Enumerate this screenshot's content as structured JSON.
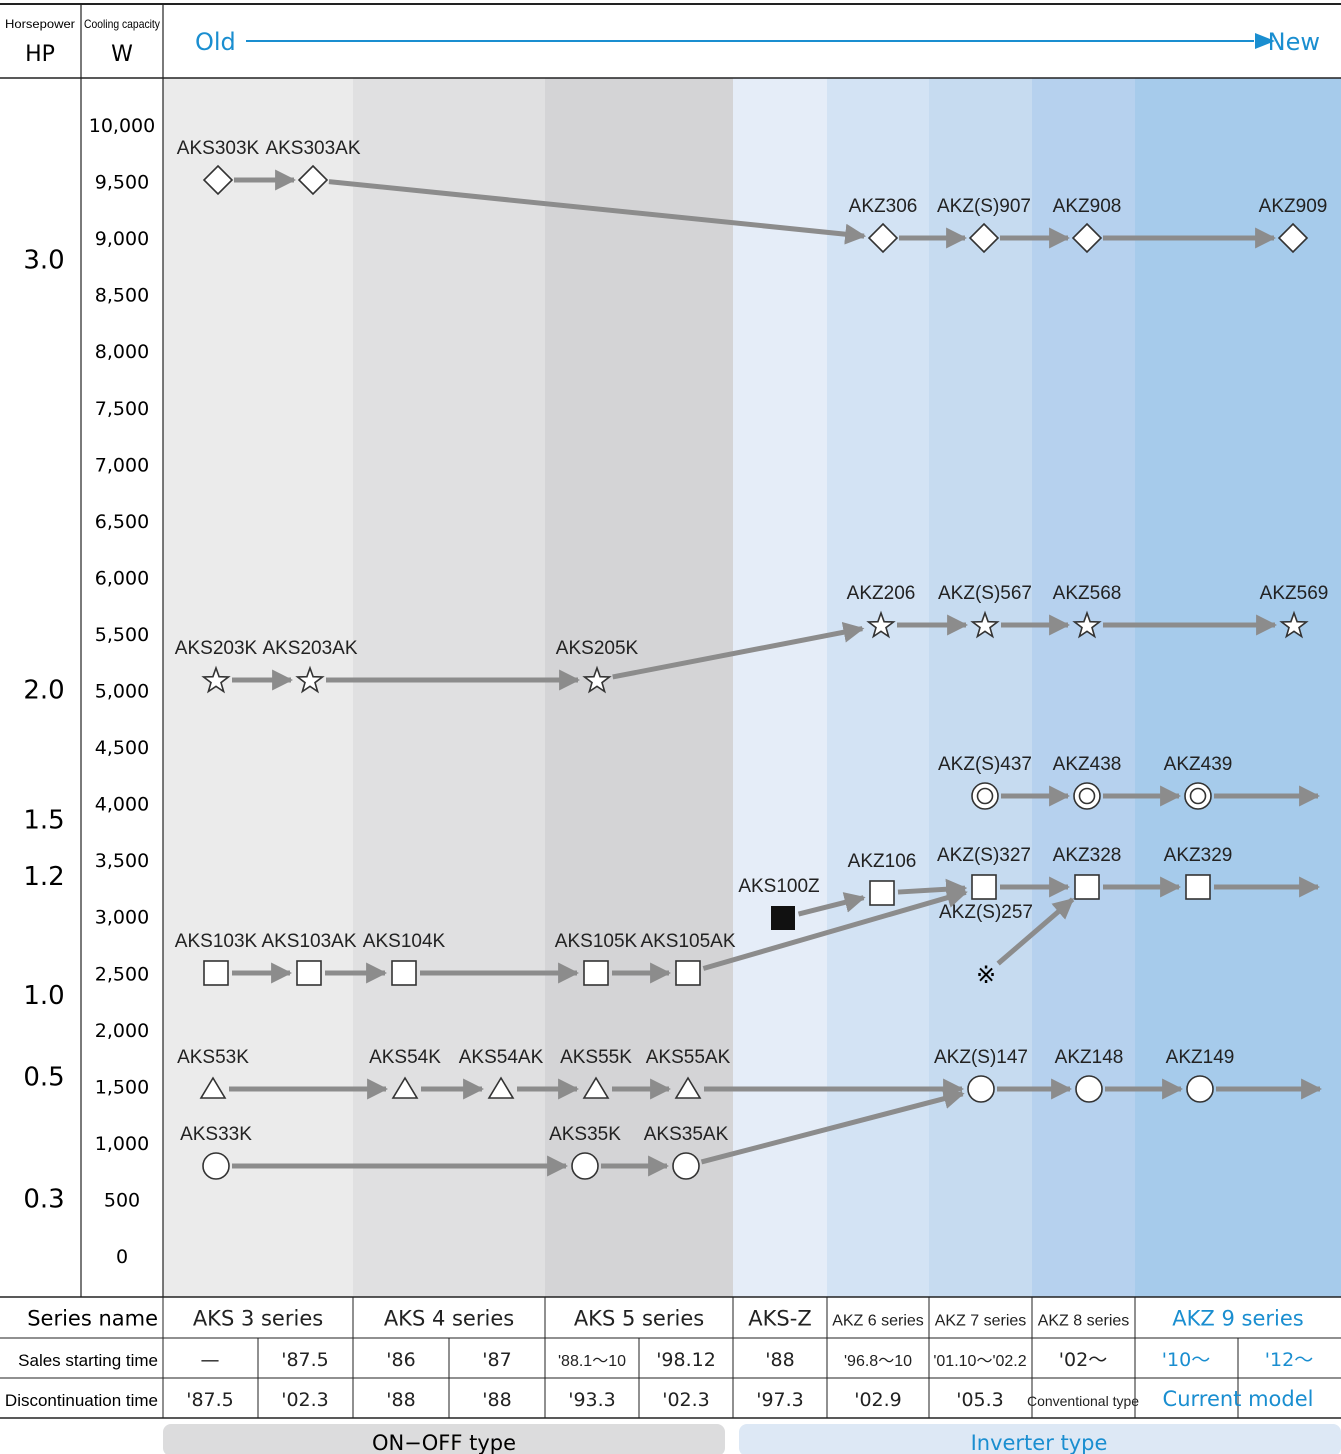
{
  "header": {
    "horsepower_label": "Horsepower",
    "horsepower_unit": "HP",
    "cooling_label": "Cooling capacity",
    "cooling_unit": "W",
    "old_label": "Old",
    "new_label": "New"
  },
  "capacity_ticks": [
    "10,000",
    "9,500",
    "9,000",
    "8,500",
    "8,000",
    "7,500",
    "7,000",
    "6,500",
    "6,000",
    "5,500",
    "5,000",
    "4,500",
    "4,000",
    "3,500",
    "3,000",
    "2,500",
    "2,000",
    "1,500",
    "1,000",
    "500",
    "0"
  ],
  "hp_ticks": [
    {
      "label": "3.0",
      "w": 8800
    },
    {
      "label": "2.0",
      "w": 5000
    },
    {
      "label": "1.5",
      "w": 3850
    },
    {
      "label": "1.2",
      "w": 3350
    },
    {
      "label": "1.0",
      "w": 2300
    },
    {
      "label": "0.5",
      "w": 1580
    },
    {
      "label": "0.3",
      "w": 500
    }
  ],
  "models": [
    {
      "id": "AKS303K",
      "label": "AKS303K",
      "series": "AKS 3 series",
      "symbol": "diamond"
    },
    {
      "id": "AKS303AK",
      "label": "AKS303AK",
      "series": "AKS 3 series",
      "symbol": "diamond"
    },
    {
      "id": "AKZ306",
      "label": "AKZ306",
      "series": "AKZ 6 series",
      "symbol": "diamond"
    },
    {
      "id": "AKZS907",
      "label": "AKZ(S)907",
      "series": "AKZ 7 series",
      "symbol": "diamond"
    },
    {
      "id": "AKZ908",
      "label": "AKZ908",
      "series": "AKZ 8 series",
      "symbol": "diamond"
    },
    {
      "id": "AKZ909",
      "label": "AKZ909",
      "series": "AKZ 9 series",
      "symbol": "diamond"
    },
    {
      "id": "AKS203K",
      "label": "AKS203K",
      "series": "AKS 3 series",
      "symbol": "star"
    },
    {
      "id": "AKS203AK",
      "label": "AKS203AK",
      "series": "AKS 3 series",
      "symbol": "star"
    },
    {
      "id": "AKS205K",
      "label": "AKS205K",
      "series": "AKS 5 series",
      "symbol": "star"
    },
    {
      "id": "AKZ206",
      "label": "AKZ206",
      "series": "AKZ 6 series",
      "symbol": "star"
    },
    {
      "id": "AKZS567",
      "label": "AKZ(S)567",
      "series": "AKZ 7 series",
      "symbol": "star"
    },
    {
      "id": "AKZ568",
      "label": "AKZ568",
      "series": "AKZ 8 series",
      "symbol": "star"
    },
    {
      "id": "AKZ569",
      "label": "AKZ569",
      "series": "AKZ 9 series",
      "symbol": "star"
    },
    {
      "id": "AKZS437",
      "label": "AKZ(S)437",
      "series": "AKZ 7 series",
      "symbol": "double-circle"
    },
    {
      "id": "AKZ438",
      "label": "AKZ438",
      "series": "AKZ 8 series",
      "symbol": "double-circle"
    },
    {
      "id": "AKZ439",
      "label": "AKZ439",
      "series": "AKZ 9 series",
      "symbol": "double-circle"
    },
    {
      "id": "AKS100Z",
      "label": "AKS100Z",
      "series": "AKS-Z",
      "symbol": "filled-square"
    },
    {
      "id": "AKZ106",
      "label": "AKZ106",
      "series": "AKZ 6 series",
      "symbol": "square"
    },
    {
      "id": "AKZS327",
      "label": "AKZ(S)327",
      "series": "AKZ 7 series",
      "symbol": "square"
    },
    {
      "id": "AKZ328",
      "label": "AKZ328",
      "series": "AKZ 8 series",
      "symbol": "square"
    },
    {
      "id": "AKZ329",
      "label": "AKZ329",
      "series": "AKZ 9 series",
      "symbol": "square"
    },
    {
      "id": "AKZS257",
      "label": "AKZ(S)257",
      "series": "AKZ 7 series",
      "symbol": "reference-mark"
    },
    {
      "id": "AKS103K",
      "label": "AKS103K",
      "series": "AKS 3 series",
      "symbol": "square"
    },
    {
      "id": "AKS103AK",
      "label": "AKS103AK",
      "series": "AKS 3 series",
      "symbol": "square"
    },
    {
      "id": "AKS104K",
      "label": "AKS104K",
      "series": "AKS 4 series",
      "symbol": "square"
    },
    {
      "id": "AKS105K",
      "label": "AKS105K",
      "series": "AKS 5 series",
      "symbol": "square"
    },
    {
      "id": "AKS105AK",
      "label": "AKS105AK",
      "series": "AKS 5 series",
      "symbol": "square"
    },
    {
      "id": "AKS53K",
      "label": "AKS53K",
      "series": "AKS 3 series",
      "symbol": "triangle"
    },
    {
      "id": "AKS54K",
      "label": "AKS54K",
      "series": "AKS 4 series",
      "symbol": "triangle"
    },
    {
      "id": "AKS54AK",
      "label": "AKS54AK",
      "series": "AKS 4 series",
      "symbol": "triangle"
    },
    {
      "id": "AKS55K",
      "label": "AKS55K",
      "series": "AKS 5 series",
      "symbol": "triangle"
    },
    {
      "id": "AKS55AK",
      "label": "AKS55AK",
      "series": "AKS 5 series",
      "symbol": "triangle"
    },
    {
      "id": "AKZS147",
      "label": "AKZ(S)147",
      "series": "AKZ 7 series",
      "symbol": "circle"
    },
    {
      "id": "AKZ148",
      "label": "AKZ148",
      "series": "AKZ 8 series",
      "symbol": "circle"
    },
    {
      "id": "AKZ149",
      "label": "AKZ149",
      "series": "AKZ 9 series",
      "symbol": "circle"
    },
    {
      "id": "AKS33K",
      "label": "AKS33K",
      "series": "AKS 3 series",
      "symbol": "circle"
    },
    {
      "id": "AKS35K",
      "label": "AKS35K",
      "series": "AKS 5 series",
      "symbol": "circle"
    },
    {
      "id": "AKS35AK",
      "label": "AKS35AK",
      "series": "AKS 5 series",
      "symbol": "circle"
    }
  ],
  "lineage": [
    [
      "AKS303K",
      "AKS303AK"
    ],
    [
      "AKS303AK",
      "AKZ306"
    ],
    [
      "AKZ306",
      "AKZS907"
    ],
    [
      "AKZS907",
      "AKZ908"
    ],
    [
      "AKZ908",
      "AKZ909"
    ],
    [
      "AKS203K",
      "AKS203AK"
    ],
    [
      "AKS203AK",
      "AKS205K"
    ],
    [
      "AKS205K",
      "AKZ206"
    ],
    [
      "AKZ206",
      "AKZS567"
    ],
    [
      "AKZS567",
      "AKZ568"
    ],
    [
      "AKZ568",
      "AKZ569"
    ],
    [
      "AKZS437",
      "AKZ438"
    ],
    [
      "AKZ438",
      "AKZ439"
    ],
    [
      "AKZ439",
      "next"
    ],
    [
      "AKS100Z",
      "AKZ106"
    ],
    [
      "AKZ106",
      "AKZS327"
    ],
    [
      "AKZS327",
      "AKZ328"
    ],
    [
      "AKZ328",
      "AKZ329"
    ],
    [
      "AKZ329",
      "next"
    ],
    [
      "AKZS257",
      "AKZ328"
    ],
    [
      "AKS103K",
      "AKS103AK"
    ],
    [
      "AKS103AK",
      "AKS104K"
    ],
    [
      "AKS104K",
      "AKS105K"
    ],
    [
      "AKS105K",
      "AKS105AK"
    ],
    [
      "AKS105AK",
      "AKZS327"
    ],
    [
      "AKS53K",
      "AKS54K"
    ],
    [
      "AKS54K",
      "AKS54AK"
    ],
    [
      "AKS54AK",
      "AKS55K"
    ],
    [
      "AKS55K",
      "AKS55AK"
    ],
    [
      "AKS55AK",
      "AKZS147"
    ],
    [
      "AKZS147",
      "AKZ148"
    ],
    [
      "AKZ148",
      "AKZ149"
    ],
    [
      "AKZ149",
      "next"
    ],
    [
      "AKS33K",
      "AKS35K"
    ],
    [
      "AKS35K",
      "AKS35AK"
    ],
    [
      "AKS35AK",
      "AKZS147"
    ]
  ],
  "table": {
    "row_labels": [
      "Series name",
      "Sales starting time",
      "Discontinuation time"
    ],
    "series_names": [
      "AKS 3 series",
      "AKS 4 series",
      "AKS 5 series",
      "AKS-Z",
      "AKZ 6 series",
      "AKZ 7 series",
      "AKZ 8 series",
      "AKZ 9 series"
    ],
    "sales_start": [
      "—",
      "'87.5",
      "'86",
      "'87",
      "'88.1～10",
      "'98.12",
      "'88",
      "'96.8～10",
      "'01.10～'02.2",
      "'02～",
      "'10～",
      "'12～"
    ],
    "discontinuation": [
      "'87.5",
      "'02.3",
      "'88",
      "'88",
      "'93.3",
      "'02.3",
      "'97.3",
      "'02.9",
      "'05.3",
      "Conventional type",
      "Current model"
    ]
  },
  "types": {
    "onoff": "ON−OFF type",
    "inverter": "Inverter type"
  },
  "colors": {
    "accent": "#1a8ed0",
    "arrow": "#8c8c8c",
    "band_gray_light": "#ebebeb",
    "band_gray_mid": "#e0e0e1",
    "band_gray_dark": "#d4d4d6",
    "band_blue_1": "#e5edf8",
    "band_blue_2": "#d3e3f4",
    "band_blue_3": "#c6dbf0",
    "band_blue_4": "#b6d1ee",
    "band_blue_5": "#a6cbeb"
  }
}
